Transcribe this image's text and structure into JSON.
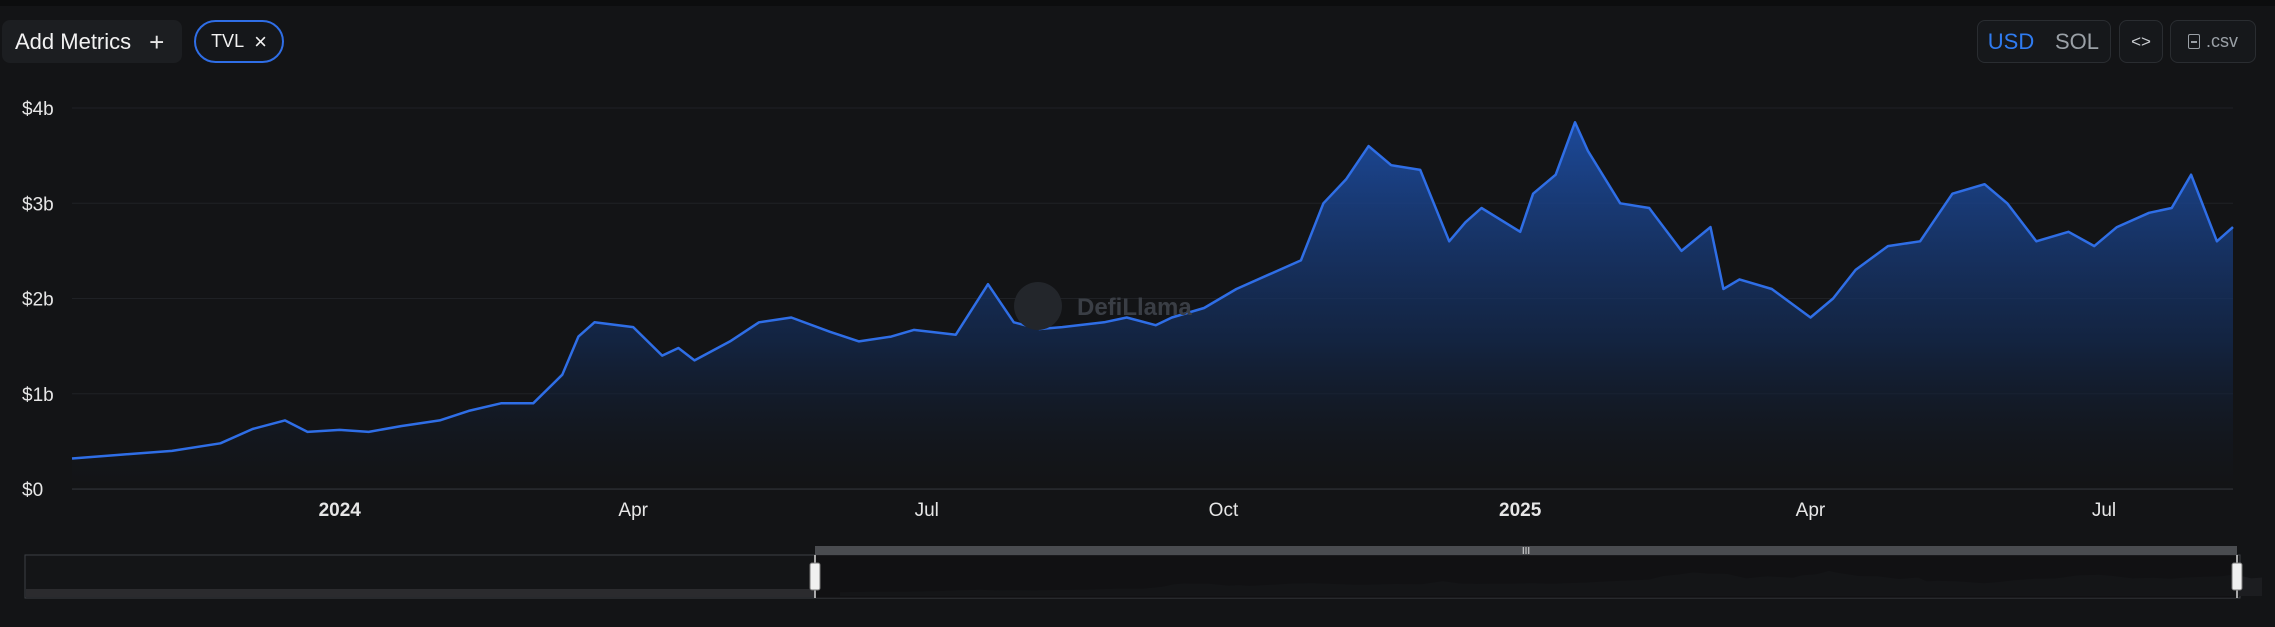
{
  "toolbar": {
    "add_metrics_label": "Add Metrics",
    "add_icon": "plus-icon",
    "chip_label": "TVL",
    "chip_close_icon": "close-icon",
    "currency_options": [
      "USD",
      "SOL"
    ],
    "currency_selected": "USD",
    "embed_label": "<>",
    "csv_label": ".csv",
    "csv_icon": "file-icon"
  },
  "watermark": "DefiLlama",
  "colors": {
    "accent": "#2f7bf0",
    "line": "#2f6ee6",
    "background": "#131416"
  },
  "chart_data": {
    "type": "area",
    "title": "",
    "xlabel": "",
    "ylabel": "",
    "ylim": [
      0,
      4
    ],
    "y_unit": "billion USD",
    "y_ticks": [
      {
        "value": 0,
        "label": "$0"
      },
      {
        "value": 1,
        "label": "$1b"
      },
      {
        "value": 2,
        "label": "$2b"
      },
      {
        "value": 3,
        "label": "$3b"
      },
      {
        "value": 4,
        "label": "$4b"
      }
    ],
    "x_range": [
      "2023-10-10",
      "2025-08-10"
    ],
    "x_ticks": [
      {
        "date": "2024-01-01",
        "label": "2024",
        "bold": true
      },
      {
        "date": "2024-04-01",
        "label": "Apr",
        "bold": false
      },
      {
        "date": "2024-07-01",
        "label": "Jul",
        "bold": false
      },
      {
        "date": "2024-10-01",
        "label": "Oct",
        "bold": false
      },
      {
        "date": "2025-01-01",
        "label": "2025",
        "bold": true
      },
      {
        "date": "2025-04-01",
        "label": "Apr",
        "bold": false
      },
      {
        "date": "2025-07-01",
        "label": "Jul",
        "bold": false
      }
    ],
    "series": [
      {
        "x": [
          "2023-10-10",
          "2023-10-25",
          "2023-11-10",
          "2023-11-25",
          "2023-12-05",
          "2023-12-15",
          "2023-12-22",
          "2024-01-01",
          "2024-01-10",
          "2024-01-20",
          "2024-02-01",
          "2024-02-10",
          "2024-02-20",
          "2024-03-01",
          "2024-03-10",
          "2024-03-15",
          "2024-03-20",
          "2024-04-01",
          "2024-04-10",
          "2024-04-15",
          "2024-04-20",
          "2024-05-01",
          "2024-05-10",
          "2024-05-20",
          "2024-06-01",
          "2024-06-10",
          "2024-06-20",
          "2024-06-27",
          "2024-07-10",
          "2024-07-20",
          "2024-07-28",
          "2024-08-05",
          "2024-08-12",
          "2024-08-25",
          "2024-09-01",
          "2024-09-10",
          "2024-09-15",
          "2024-09-25",
          "2024-10-05",
          "2024-10-15",
          "2024-10-25",
          "2024-11-01",
          "2024-11-08",
          "2024-11-15",
          "2024-11-22",
          "2024-12-01",
          "2024-12-10",
          "2024-12-15",
          "2024-12-20",
          "2025-01-01",
          "2025-01-05",
          "2025-01-12",
          "2025-01-18",
          "2025-01-22",
          "2025-02-01",
          "2025-02-10",
          "2025-02-20",
          "2025-03-01",
          "2025-03-05",
          "2025-03-10",
          "2025-03-20",
          "2025-04-01",
          "2025-04-08",
          "2025-04-15",
          "2025-04-25",
          "2025-05-05",
          "2025-05-15",
          "2025-05-25",
          "2025-06-01",
          "2025-06-10",
          "2025-06-20",
          "2025-06-28",
          "2025-07-05",
          "2025-07-15",
          "2025-07-22",
          "2025-07-28",
          "2025-08-05",
          "2025-08-10"
        ],
        "values": [
          0.32,
          0.36,
          0.4,
          0.48,
          0.63,
          0.72,
          0.6,
          0.62,
          0.6,
          0.66,
          0.72,
          0.82,
          0.9,
          0.9,
          1.2,
          1.6,
          1.75,
          1.7,
          1.4,
          1.48,
          1.35,
          1.55,
          1.75,
          1.8,
          1.65,
          1.55,
          1.6,
          1.67,
          1.62,
          2.15,
          1.75,
          1.68,
          1.7,
          1.75,
          1.8,
          1.72,
          1.8,
          1.9,
          2.1,
          2.25,
          2.4,
          3.0,
          3.25,
          3.6,
          3.4,
          3.35,
          2.6,
          2.8,
          2.95,
          2.7,
          3.1,
          3.3,
          3.85,
          3.55,
          3.0,
          2.95,
          2.5,
          2.75,
          2.1,
          2.2,
          2.1,
          1.8,
          2.0,
          2.3,
          2.55,
          2.6,
          3.1,
          3.2,
          3.0,
          2.6,
          2.7,
          2.55,
          2.75,
          2.9,
          2.95,
          3.3,
          2.6,
          2.75
        ]
      }
    ],
    "grid": true,
    "legend": "none",
    "range_selector": {
      "from": "2023-10-10",
      "to": "2025-08-10"
    }
  }
}
